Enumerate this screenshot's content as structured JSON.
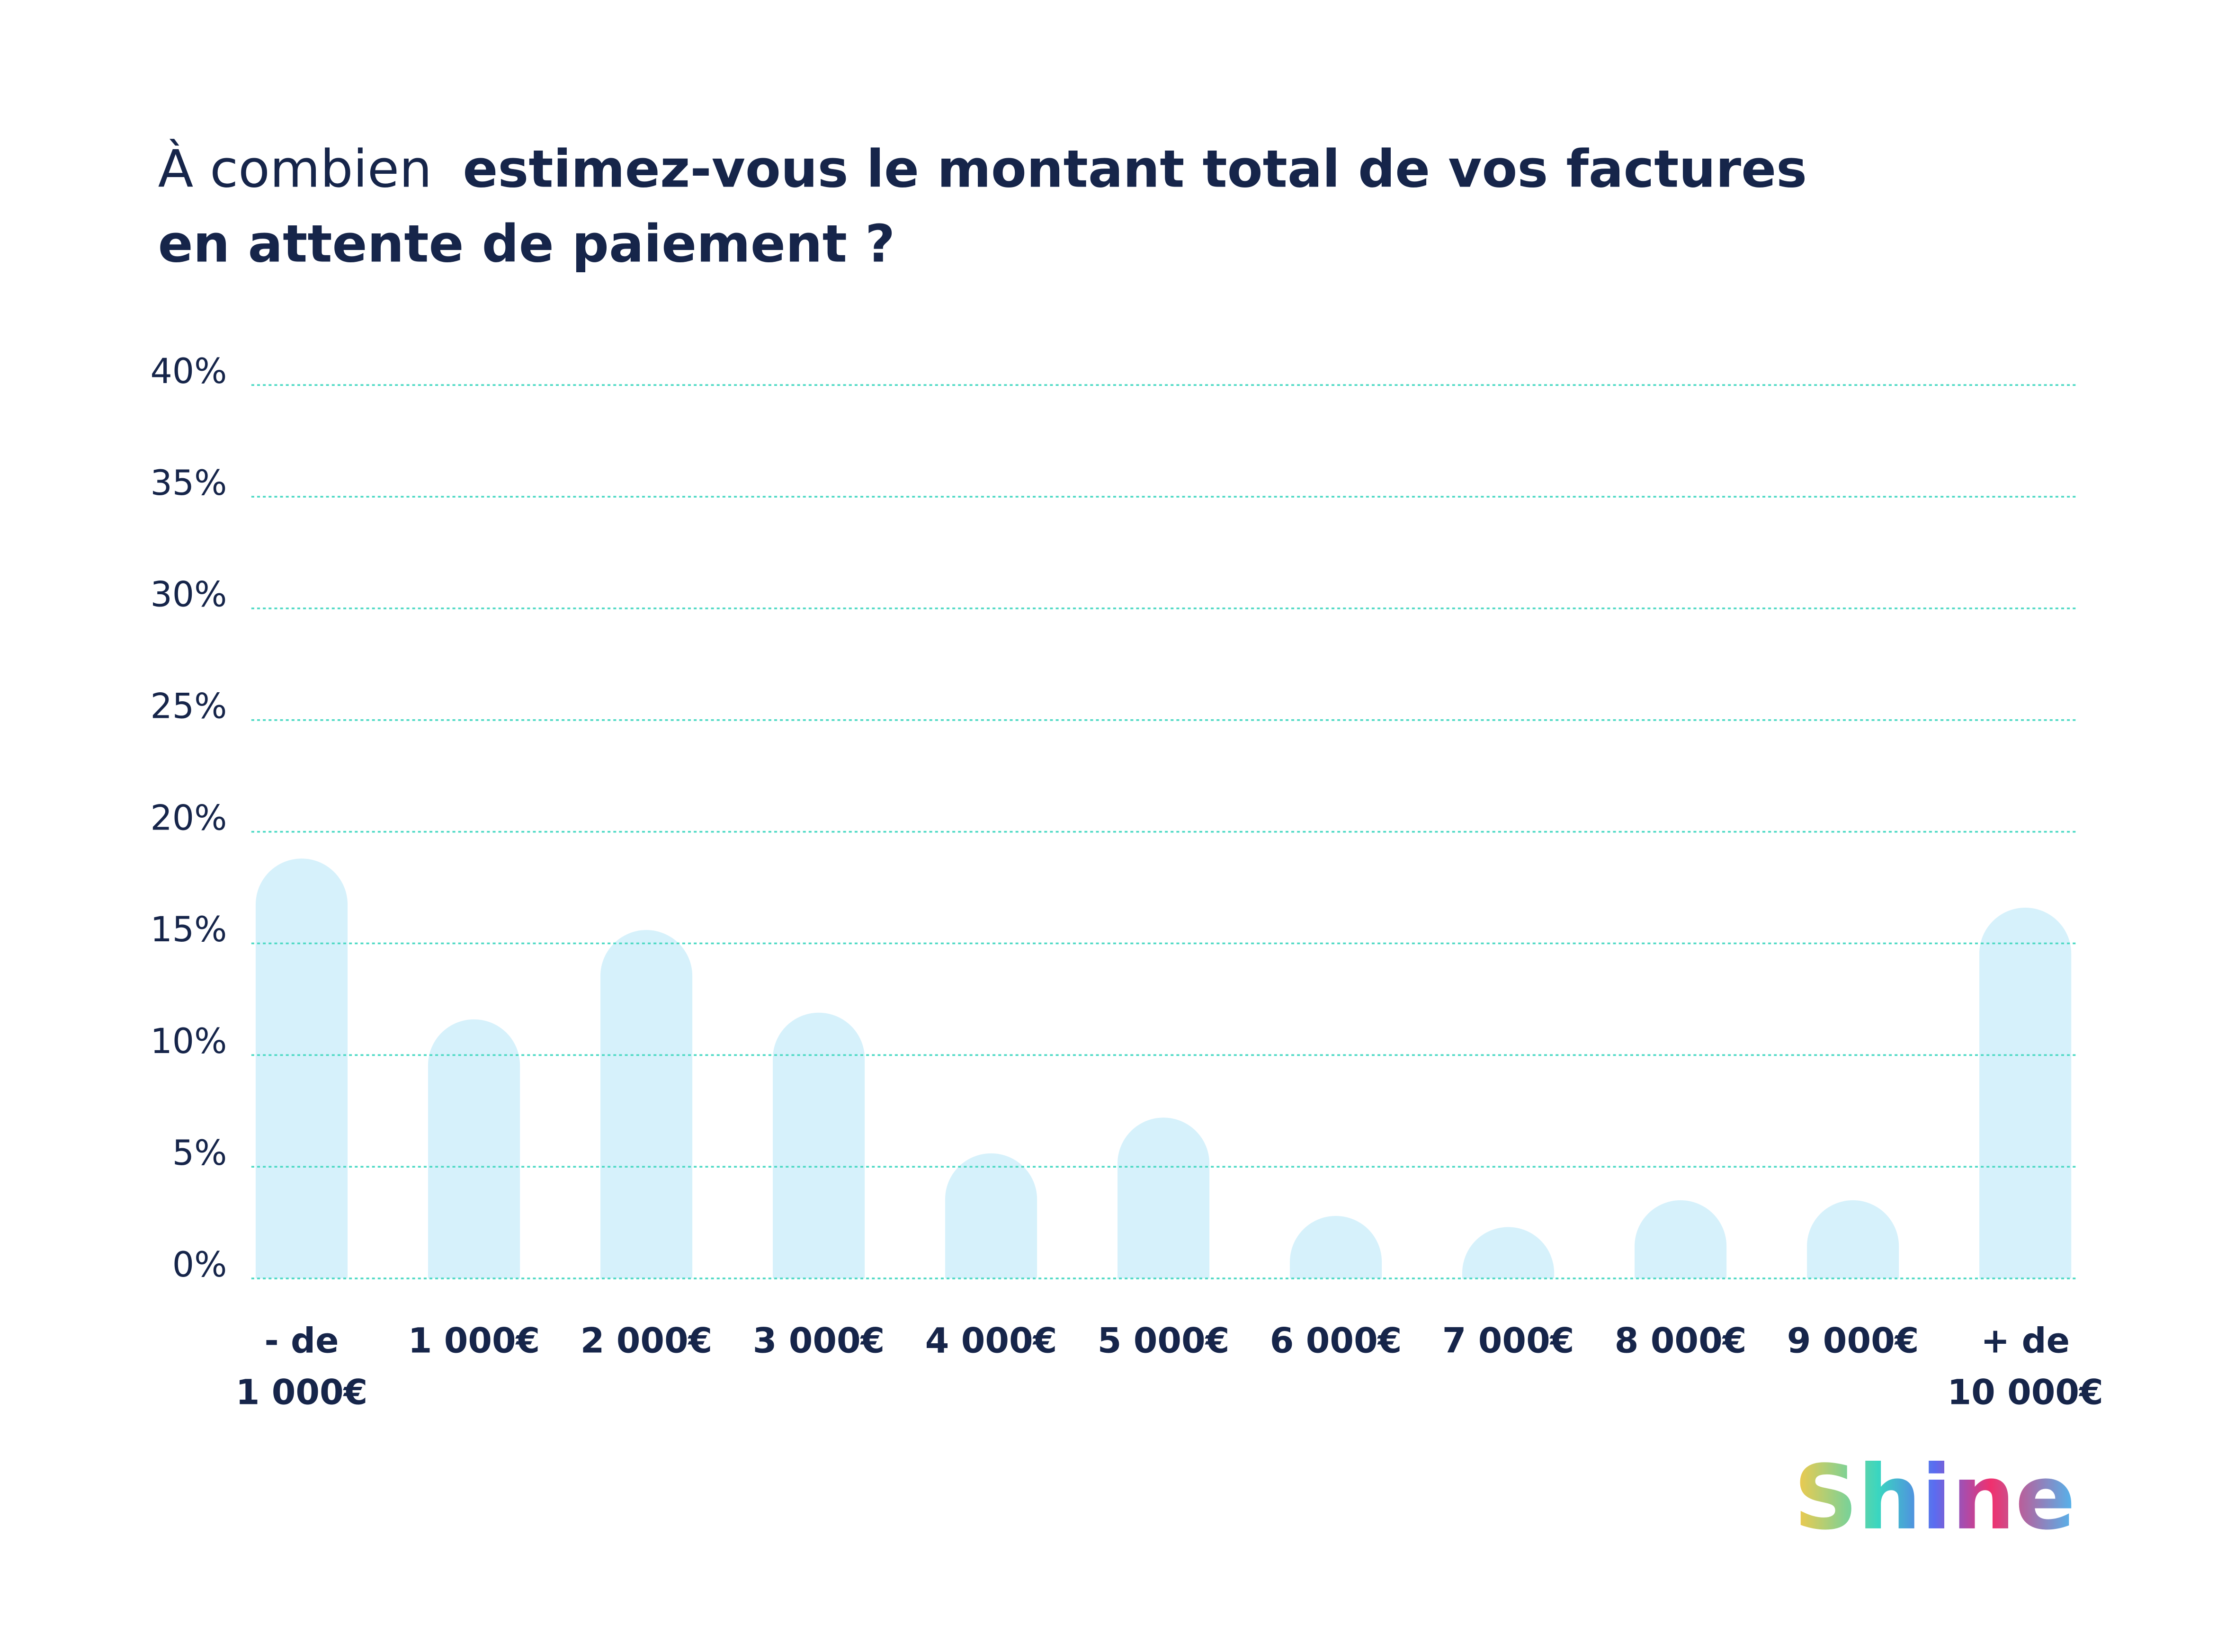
{
  "chart_data": {
    "type": "bar",
    "title_parts": [
      {
        "text": "À combien",
        "weight": "normal"
      },
      {
        "text": "estimez-vous le montant total de vos factures",
        "weight": "bold"
      },
      {
        "text": "en attente de paiement ?",
        "weight": "bold"
      }
    ],
    "categories": [
      "- de 1 000€",
      "1 000€",
      "2 000€",
      "3 000€",
      "4 000€",
      "5 000€",
      "6 000€",
      "7 000€",
      "8 000€",
      "9 000€",
      "+ de 10 000€"
    ],
    "values": [
      18.8,
      11.6,
      15.6,
      11.9,
      5.6,
      7.2,
      2.8,
      2.3,
      3.5,
      3.5,
      16.6
    ],
    "color": "#d6f1fb",
    "ylim": [
      0,
      40
    ],
    "yticks": [
      {
        "value": 0,
        "label": "0%"
      },
      {
        "value": 5,
        "label": "5%"
      },
      {
        "value": 10,
        "label": "10%"
      },
      {
        "value": 15,
        "label": "15%"
      },
      {
        "value": 20,
        "label": "20%"
      },
      {
        "value": 25,
        "label": "25%"
      },
      {
        "value": 30,
        "label": "30%"
      },
      {
        "value": 35,
        "label": "35%"
      },
      {
        "value": 40,
        "label": "40%"
      }
    ],
    "grid": true,
    "grid_color": "#4dd9c4",
    "brand": "Shine"
  }
}
